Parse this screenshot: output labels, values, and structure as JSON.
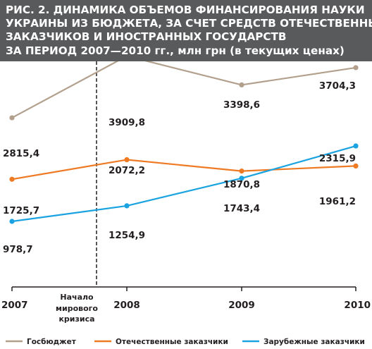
{
  "title_lines": [
    "РИС. 2. ДИНАМИКА ОБЪЕМОВ ФИНАНСИРОВАНИЯ НАУКИ",
    "УКРАИНЫ ИЗ БЮДЖЕТА, ЗА СЧЕТ СРЕДСТВ ОТЕЧЕСТВЕННЫХ",
    "ЗАКАЗЧИКОВ И ИНОСТРАННЫХ ГОСУДАРСТВ",
    "ЗА ПЕРИОД 2007—2010 гг., млн грн (в текущих ценах)"
  ],
  "colors": {
    "header_bg": "#595a5c",
    "budget": "#b2a08d",
    "domestic": "#ef7a24",
    "foreign": "#1aa3e0",
    "axis": "#231f20"
  },
  "chart_data": {
    "type": "line",
    "title": "РИС. 2. ДИНАМИКА ОБЪЕМОВ ФИНАНСИРОВАНИЯ НАУКИ УКРАИНЫ ИЗ БЮДЖЕТА, ЗА СЧЕТ СРЕДСТВ ОТЕЧЕСТВЕННЫХ ЗАКАЗЧИКОВ И ИНОСТРАННЫХ ГОСУДАРСТВ ЗА ПЕРИОД 2007—2010 гг., млн грн (в текущих ценах)",
    "x": [
      "2007",
      "2008",
      "2009",
      "2010"
    ],
    "series": [
      {
        "name": "Госбюджет",
        "values": [
          2815.4,
          3909.8,
          3398.6,
          3704.3
        ],
        "labels": [
          "2815,4",
          "3909,8",
          "3398,6",
          "3704,3"
        ],
        "color": "#b2a08d"
      },
      {
        "name": "Отечественные заказчики",
        "values": [
          1725.7,
          2072.2,
          1870.8,
          1961.2
        ],
        "labels": [
          "1725,7",
          "2072,2",
          "1870,8",
          "1961,2"
        ],
        "color": "#ef7a24"
      },
      {
        "name": "Зарубежные заказчики",
        "values": [
          978.7,
          1254.9,
          1743.4,
          2315.9
        ],
        "labels": [
          "978,7",
          "1254,9",
          "1743,4",
          "2315,9"
        ],
        "color": "#1aa3e0"
      }
    ],
    "annotation": [
      "Начало",
      "мирового",
      "кризиса"
    ],
    "legend_position": "bottom",
    "grid": false
  }
}
